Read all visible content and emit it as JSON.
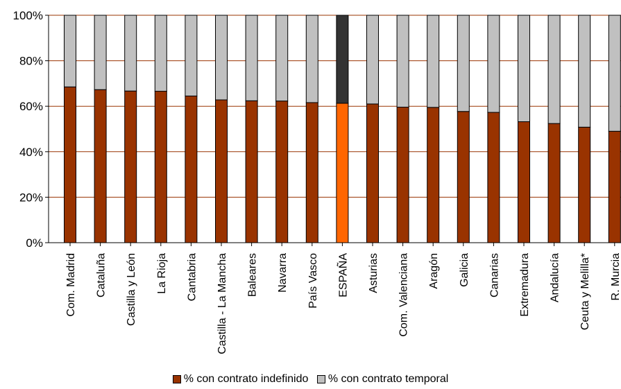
{
  "chart_data": {
    "type": "bar",
    "stacked": true,
    "percent_stacked": true,
    "title": "",
    "xlabel": "",
    "ylabel": "",
    "ylim": [
      0,
      100
    ],
    "yticks": [
      "0%",
      "20%",
      "40%",
      "60%",
      "80%",
      "100%"
    ],
    "ytick_values": [
      0,
      20,
      40,
      60,
      80,
      100
    ],
    "grid": "horizontal",
    "legend_position": "bottom",
    "highlight_category": "ESPAÑA",
    "categories": [
      "Com. Madrid",
      "Cataluña",
      "Castilla y León",
      "La Rioja",
      "Cantabria",
      "Castilla - La Mancha",
      "Baleares",
      "Navarra",
      "País Vasco",
      "ESPAÑA",
      "Asturias",
      "Com. Valenciana",
      "Aragón",
      "Galicia",
      "Canarias",
      "Extremadura",
      "Andalucía",
      "Ceuta y Melilla*",
      "R. Murcia"
    ],
    "series": [
      {
        "name": "% con contrato indefinido",
        "color": "#993300",
        "highlight_color": "#FF6600",
        "values": [
          68.5,
          67.3,
          66.7,
          66.6,
          64.5,
          62.8,
          62.4,
          62.3,
          61.6,
          61.3,
          61.0,
          59.6,
          59.5,
          57.7,
          57.3,
          53.2,
          52.4,
          50.8,
          49.0
        ]
      },
      {
        "name": "% con contrato temporal",
        "color": "#C0C0C0",
        "highlight_color": "#333333",
        "values": [
          31.5,
          32.7,
          33.3,
          33.4,
          35.5,
          37.2,
          37.6,
          37.7,
          38.4,
          38.7,
          39.0,
          40.4,
          40.5,
          42.3,
          42.7,
          46.8,
          47.6,
          49.2,
          51.0
        ]
      }
    ]
  }
}
